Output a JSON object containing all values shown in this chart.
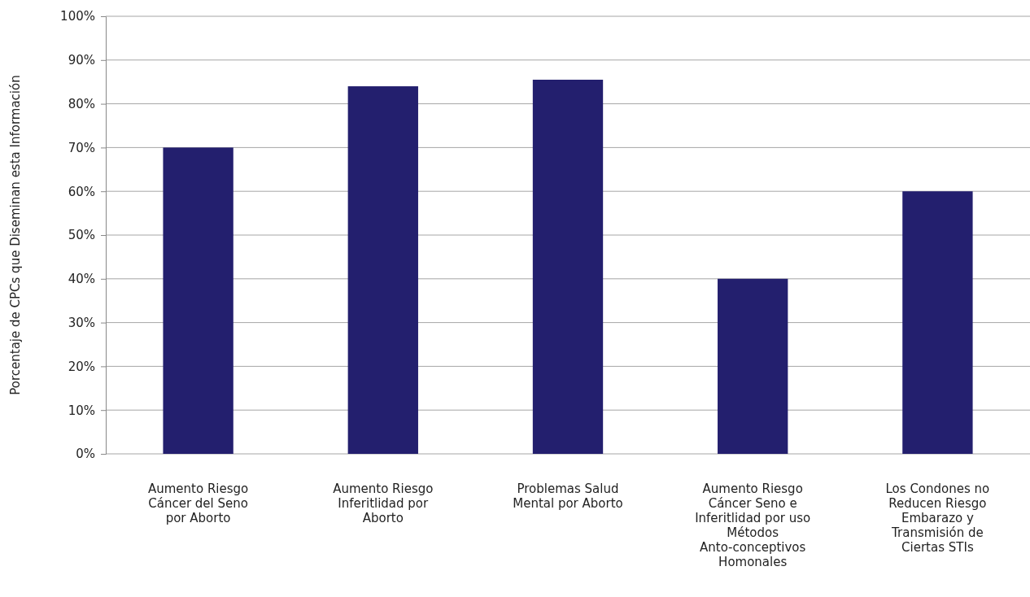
{
  "chart_data": {
    "type": "bar",
    "ylabel": "Porcentaje de CPCs que Diseminan esta Información",
    "categories": [
      "Aumento Riesgo Cáncer del Seno por Aborto",
      "Aumento Riesgo Inferitlidad por Aborto",
      "Problemas Salud Mental por Aborto",
      "Aumento Riesgo Cáncer Seno e Inferitlidad por uso Métodos Anto-conceptivos Homonales",
      "Los Condones no Reducen Riesgo Embarazo y Transmisión de Ciertas STIs"
    ],
    "values": [
      70,
      84,
      85.5,
      40,
      60
    ],
    "color": "#231f6e",
    "ylim": [
      0,
      100
    ],
    "yticks": [
      {
        "value": 0,
        "label": "0%"
      },
      {
        "value": 10,
        "label": "10%"
      },
      {
        "value": 20,
        "label": "20%"
      },
      {
        "value": 30,
        "label": "30%"
      },
      {
        "value": 40,
        "label": "40%"
      },
      {
        "value": 50,
        "label": "50%"
      },
      {
        "value": 60,
        "label": "60%"
      },
      {
        "value": 70,
        "label": "70%"
      },
      {
        "value": 80,
        "label": "80%"
      },
      {
        "value": 90,
        "label": "90%"
      },
      {
        "value": 100,
        "label": "100%"
      }
    ],
    "grid": "y"
  }
}
